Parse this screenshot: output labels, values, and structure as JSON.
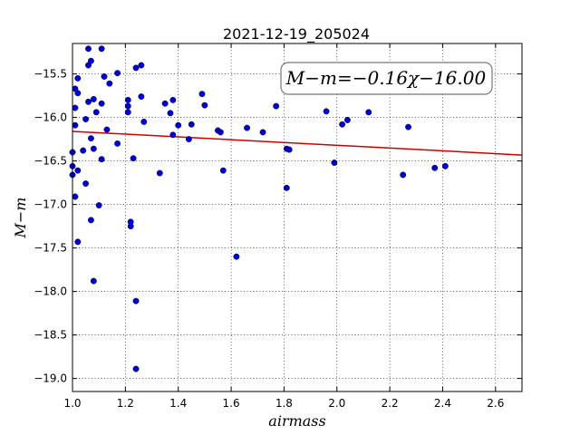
{
  "chart_data": {
    "type": "scatter",
    "title": "2021-12-19_205024",
    "xlabel": "airmass",
    "ylabel": "M−m",
    "xlim": [
      1.0,
      2.7
    ],
    "ylim": [
      -19.15,
      -15.15
    ],
    "y_inverted": true,
    "grid": true,
    "x_ticks": [
      "1.0",
      "1.2",
      "1.4",
      "1.6",
      "1.8",
      "2.0",
      "2.2",
      "2.4",
      "2.6"
    ],
    "y_ticks": [
      "−15.5",
      "−16.0",
      "−16.5",
      "−17.0",
      "−17.5",
      "−18.0",
      "−18.5",
      "−19.0"
    ],
    "annotation": "M−m=−0.16χ−16.00",
    "point_color": "#0000cc",
    "fit_color": "#cc0000",
    "fit": {
      "slope": -0.16,
      "intercept": -16.0
    },
    "points": [
      [
        1.0,
        -16.4
      ],
      [
        1.0,
        -16.56
      ],
      [
        1.0,
        -16.66
      ],
      [
        1.01,
        -15.67
      ],
      [
        1.01,
        -15.89
      ],
      [
        1.01,
        -16.09
      ],
      [
        1.01,
        -16.91
      ],
      [
        1.02,
        -15.55
      ],
      [
        1.02,
        -15.72
      ],
      [
        1.02,
        -16.61
      ],
      [
        1.02,
        -17.43
      ],
      [
        1.04,
        -16.38
      ],
      [
        1.05,
        -16.02
      ],
      [
        1.05,
        -16.76
      ],
      [
        1.06,
        -15.21
      ],
      [
        1.06,
        -15.4
      ],
      [
        1.06,
        -15.82
      ],
      [
        1.07,
        -15.35
      ],
      [
        1.07,
        -16.24
      ],
      [
        1.07,
        -17.18
      ],
      [
        1.08,
        -15.79
      ],
      [
        1.08,
        -16.36
      ],
      [
        1.08,
        -17.88
      ],
      [
        1.09,
        -15.94
      ],
      [
        1.1,
        -17.01
      ],
      [
        1.11,
        -15.21
      ],
      [
        1.11,
        -15.84
      ],
      [
        1.11,
        -16.48
      ],
      [
        1.12,
        -15.53
      ],
      [
        1.13,
        -16.14
      ],
      [
        1.14,
        -15.61
      ],
      [
        1.17,
        -15.49
      ],
      [
        1.17,
        -16.3
      ],
      [
        1.21,
        -15.8
      ],
      [
        1.21,
        -15.87
      ],
      [
        1.21,
        -15.94
      ],
      [
        1.22,
        -17.25
      ],
      [
        1.22,
        -17.2
      ],
      [
        1.23,
        -16.47
      ],
      [
        1.24,
        -15.43
      ],
      [
        1.24,
        -18.11
      ],
      [
        1.24,
        -18.89
      ],
      [
        1.26,
        -15.4
      ],
      [
        1.26,
        -15.76
      ],
      [
        1.27,
        -16.05
      ],
      [
        1.33,
        -16.64
      ],
      [
        1.35,
        -15.84
      ],
      [
        1.37,
        -15.95
      ],
      [
        1.38,
        -15.8
      ],
      [
        1.38,
        -16.2
      ],
      [
        1.4,
        -16.09
      ],
      [
        1.44,
        -16.25
      ],
      [
        1.45,
        -16.08
      ],
      [
        1.49,
        -15.73
      ],
      [
        1.5,
        -15.86
      ],
      [
        1.55,
        -16.15
      ],
      [
        1.56,
        -16.17
      ],
      [
        1.57,
        -16.61
      ],
      [
        1.62,
        -17.6
      ],
      [
        1.66,
        -16.12
      ],
      [
        1.72,
        -16.17
      ],
      [
        1.77,
        -15.87
      ],
      [
        1.81,
        -16.36
      ],
      [
        1.81,
        -16.81
      ],
      [
        1.82,
        -16.37
      ],
      [
        1.96,
        -15.93
      ],
      [
        1.99,
        -16.52
      ],
      [
        2.02,
        -16.08
      ],
      [
        2.04,
        -16.03
      ],
      [
        2.12,
        -15.94
      ],
      [
        2.25,
        -16.66
      ],
      [
        2.27,
        -16.11
      ],
      [
        2.37,
        -16.58
      ],
      [
        2.41,
        -16.56
      ]
    ]
  }
}
